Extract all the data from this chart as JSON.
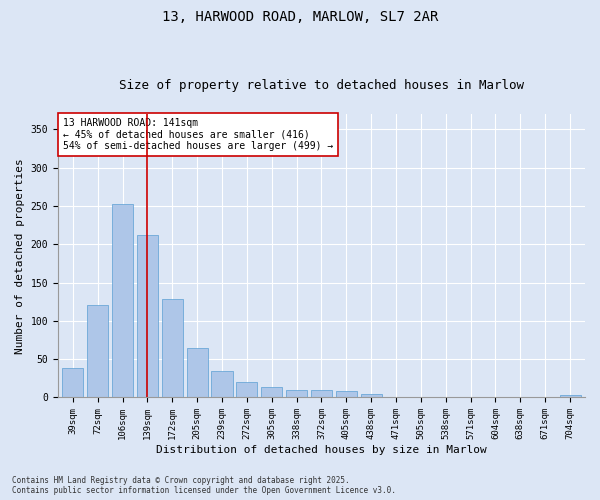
{
  "title1": "13, HARWOOD ROAD, MARLOW, SL7 2AR",
  "title2": "Size of property relative to detached houses in Marlow",
  "xlabel": "Distribution of detached houses by size in Marlow",
  "ylabel": "Number of detached properties",
  "categories": [
    "39sqm",
    "72sqm",
    "106sqm",
    "139sqm",
    "172sqm",
    "205sqm",
    "239sqm",
    "272sqm",
    "305sqm",
    "338sqm",
    "372sqm",
    "405sqm",
    "438sqm",
    "471sqm",
    "505sqm",
    "538sqm",
    "571sqm",
    "604sqm",
    "638sqm",
    "671sqm",
    "704sqm"
  ],
  "values": [
    38,
    121,
    253,
    212,
    129,
    65,
    35,
    20,
    14,
    10,
    10,
    9,
    4,
    1,
    1,
    0,
    0,
    0,
    0,
    0,
    3
  ],
  "bar_color": "#aec6e8",
  "bar_edge_color": "#5a9fd4",
  "vline_x": 3,
  "vline_color": "#cc0000",
  "annotation_text": "13 HARWOOD ROAD: 141sqm\n← 45% of detached houses are smaller (416)\n54% of semi-detached houses are larger (499) →",
  "annotation_box_color": "#ffffff",
  "annotation_box_edge": "#cc0000",
  "background_color": "#dce6f5",
  "axes_background": "#dce6f5",
  "ylim": [
    0,
    370
  ],
  "yticks": [
    0,
    50,
    100,
    150,
    200,
    250,
    300,
    350
  ],
  "footer": "Contains HM Land Registry data © Crown copyright and database right 2025.\nContains public sector information licensed under the Open Government Licence v3.0.",
  "title_fontsize": 10,
  "subtitle_fontsize": 9,
  "tick_fontsize": 6.5,
  "ylabel_fontsize": 8,
  "xlabel_fontsize": 8,
  "annotation_fontsize": 7,
  "footer_fontsize": 5.5
}
